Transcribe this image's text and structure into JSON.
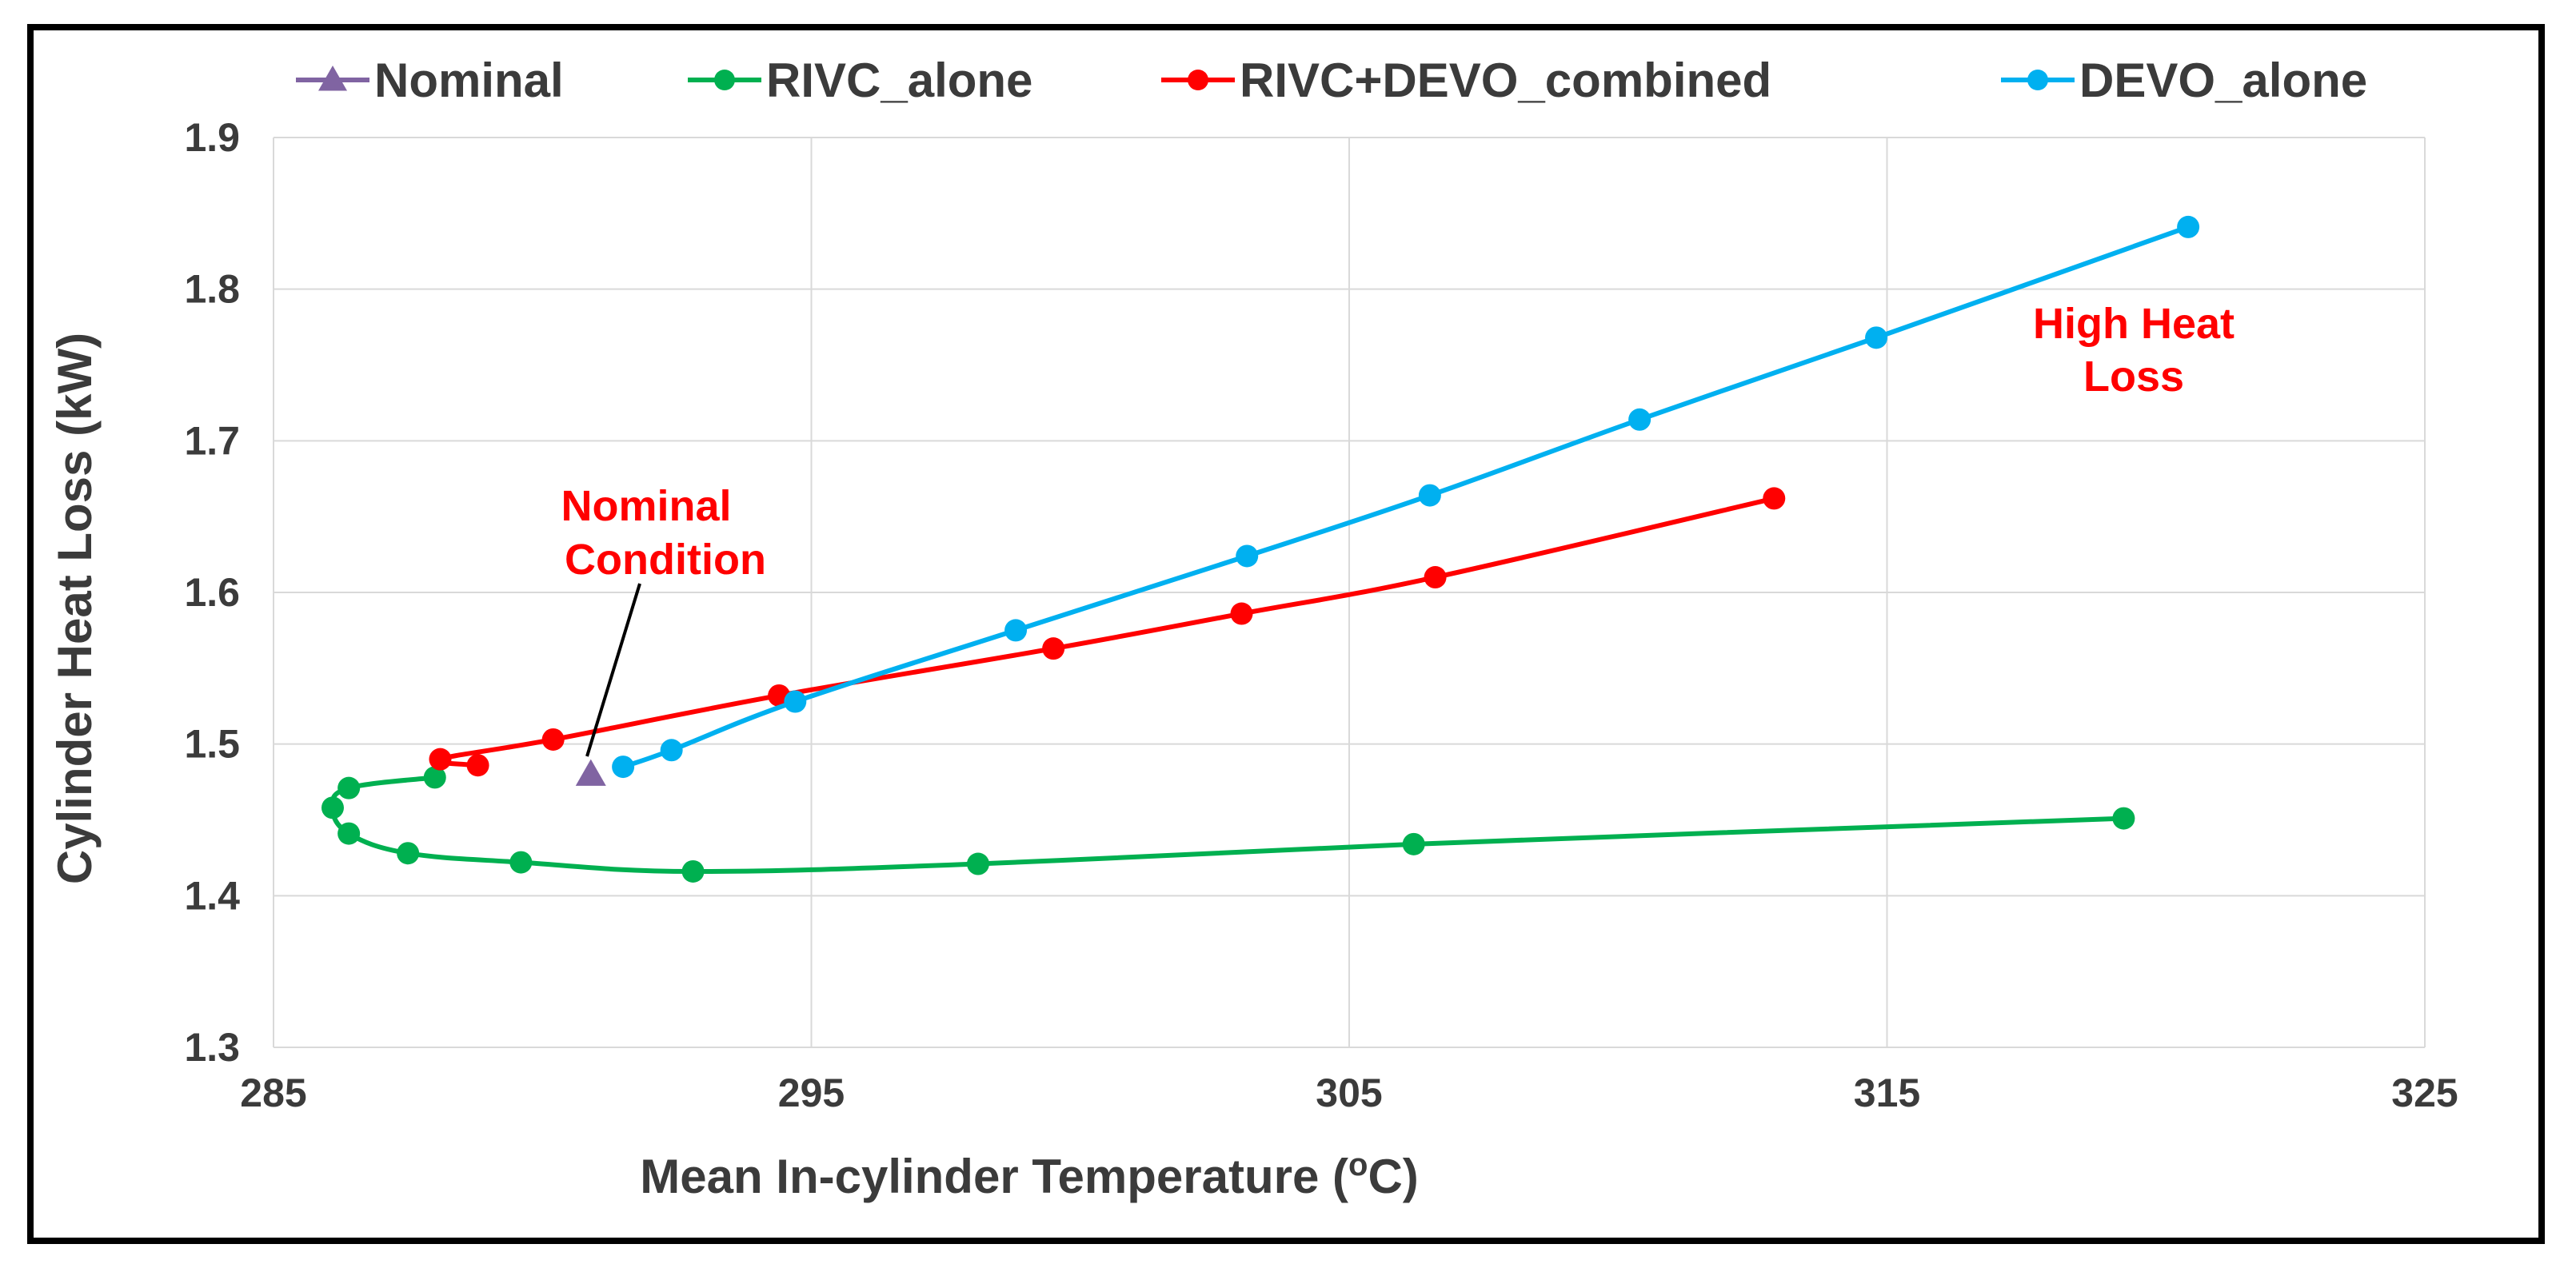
{
  "chart_data": {
    "type": "scatter",
    "title": "",
    "xlabel": "Mean In-cylinder Temperature (°C)",
    "xlabel_parts": {
      "before": "Mean In-cylinder Temperature (",
      "super": "o",
      "after": "C)"
    },
    "ylabel": "Cylinder Heat Loss (kW)",
    "xlim": [
      285,
      325
    ],
    "ylim": [
      1.3,
      1.9
    ],
    "xticks": [
      "285",
      "295",
      "305",
      "315",
      "325"
    ],
    "yticks": [
      "1.3",
      "1.4",
      "1.5",
      "1.6",
      "1.7",
      "1.8",
      "1.9"
    ],
    "grid": true,
    "legend_position": "top",
    "series": [
      {
        "name": "Nominal",
        "color": "#8064a2",
        "marker": "triangle",
        "line": false,
        "points": [
          [
            290.9,
            1.48
          ]
        ]
      },
      {
        "name": "RIVC_alone",
        "color": "#00b050",
        "marker": "circle",
        "line": true,
        "points": [
          [
            288.0,
            1.478
          ],
          [
            286.4,
            1.471
          ],
          [
            286.1,
            1.458
          ],
          [
            286.4,
            1.441
          ],
          [
            287.5,
            1.428
          ],
          [
            289.6,
            1.422
          ],
          [
            292.8,
            1.416
          ],
          [
            298.1,
            1.421
          ],
          [
            306.2,
            1.434
          ],
          [
            319.4,
            1.451
          ]
        ]
      },
      {
        "name": "RIVC+DEVO_combined",
        "color": "#ff0000",
        "marker": "circle",
        "line": true,
        "points": [
          [
            288.8,
            1.486
          ],
          [
            288.1,
            1.49
          ],
          [
            290.2,
            1.503
          ],
          [
            294.4,
            1.532
          ],
          [
            299.5,
            1.563
          ],
          [
            303.0,
            1.586
          ],
          [
            306.6,
            1.61
          ],
          [
            312.9,
            1.662
          ]
        ]
      },
      {
        "name": "DEVO_alone",
        "color": "#00b0f0",
        "marker": "circle",
        "line": true,
        "points": [
          [
            291.5,
            1.485
          ],
          [
            292.4,
            1.496
          ],
          [
            294.7,
            1.528
          ],
          [
            298.8,
            1.575
          ],
          [
            303.1,
            1.624
          ],
          [
            306.5,
            1.664
          ],
          [
            310.4,
            1.714
          ],
          [
            314.8,
            1.768
          ],
          [
            320.6,
            1.841
          ]
        ]
      }
    ],
    "annotations": [
      {
        "id": "nominal-condition",
        "lines": [
          "Nominal",
          "Condition"
        ],
        "color": "#ff0000"
      },
      {
        "id": "high-heat-loss",
        "lines": [
          "High Heat",
          "Loss"
        ],
        "color": "#ff0000"
      }
    ]
  }
}
